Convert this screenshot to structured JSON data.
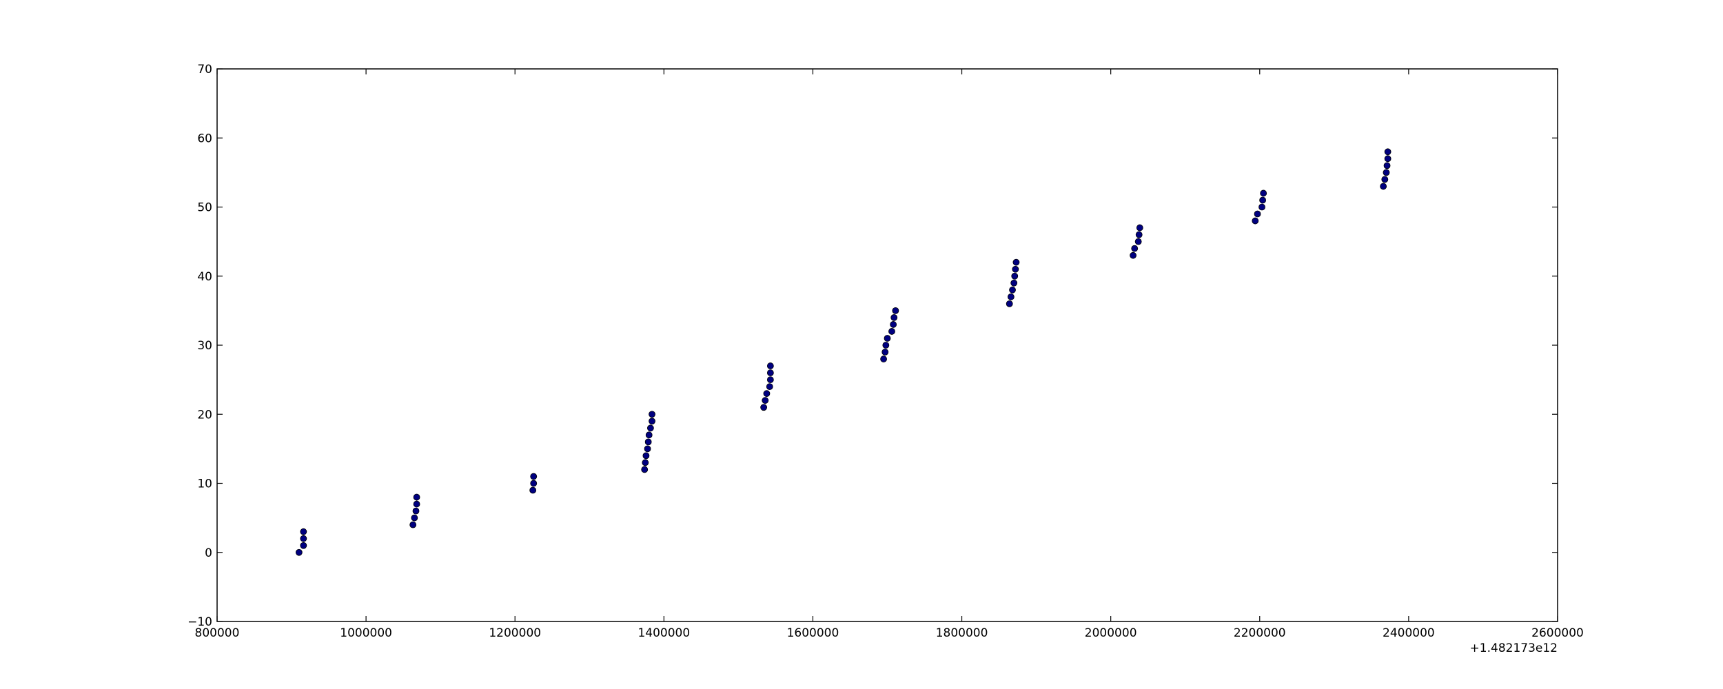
{
  "chart_data": {
    "type": "scatter",
    "title": "",
    "xlabel": "",
    "ylabel": "",
    "xlim": [
      800000,
      2600000
    ],
    "ylim": [
      -10,
      70
    ],
    "x_ticks": [
      800000,
      1000000,
      1200000,
      1400000,
      1600000,
      1800000,
      2000000,
      2200000,
      2400000,
      2600000
    ],
    "x_tick_labels": [
      "800000",
      "1000000",
      "1200000",
      "1400000",
      "1600000",
      "1800000",
      "2000000",
      "2200000",
      "2400000",
      "2600000"
    ],
    "y_ticks": [
      -10,
      0,
      10,
      20,
      30,
      40,
      50,
      60,
      70
    ],
    "y_tick_labels": [
      "−10",
      "0",
      "10",
      "20",
      "30",
      "40",
      "50",
      "60",
      "70"
    ],
    "x_offset_label": "+1.482173e12",
    "grid": false,
    "marker_color": "#000080",
    "series": [
      {
        "name": "points",
        "x": [
          910000,
          916000,
          916000,
          916000,
          1063000,
          1065000,
          1067000,
          1068000,
          1068000,
          1224000,
          1225000,
          1225000,
          1374000,
          1375000,
          1376000,
          1378000,
          1379000,
          1380000,
          1382000,
          1384000,
          1384000,
          1534000,
          1536000,
          1538000,
          1542000,
          1543000,
          1543000,
          1543000,
          1695000,
          1697000,
          1698000,
          1700000,
          1706000,
          1708000,
          1709000,
          1711000,
          1864000,
          1866000,
          1868000,
          1870000,
          1871000,
          1872000,
          1873000,
          2030000,
          2032000,
          2037000,
          2038000,
          2039000,
          2194000,
          2197000,
          2203000,
          2204000,
          2205000,
          2366000,
          2368000,
          2370000,
          2371000,
          2372000,
          2372000
        ],
        "y": [
          0,
          1,
          2,
          3,
          4,
          5,
          6,
          7,
          8,
          9,
          10,
          11,
          12,
          13,
          14,
          15,
          16,
          17,
          18,
          19,
          20,
          21,
          22,
          23,
          24,
          25,
          26,
          27,
          28,
          29,
          30,
          31,
          32,
          33,
          34,
          35,
          36,
          37,
          38,
          39,
          40,
          41,
          42,
          43,
          44,
          45,
          46,
          47,
          48,
          49,
          50,
          51,
          52,
          53,
          54,
          55,
          56,
          57,
          58
        ]
      }
    ]
  }
}
